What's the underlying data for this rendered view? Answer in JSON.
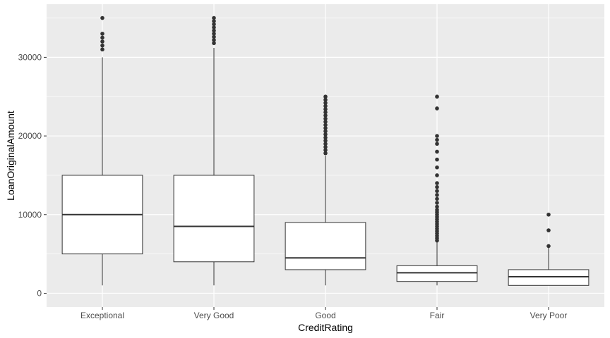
{
  "chart_data": {
    "type": "box",
    "xlabel": "CreditRating",
    "ylabel": "LoanOriginalAmount",
    "ylim": [
      -1750,
      36750
    ],
    "yticks": [
      0,
      10000,
      20000,
      30000
    ],
    "ytick_labels": [
      "0",
      "10000",
      "20000",
      "30000"
    ],
    "grid": true,
    "categories": [
      "Exceptional",
      "Very Good",
      "Good",
      "Fair",
      "Very Poor"
    ],
    "boxes": [
      {
        "category": "Exceptional",
        "whisker_low": 1000,
        "q1": 5000,
        "median": 10000,
        "q3": 15000,
        "whisker_high": 30000,
        "outliers": [
          31000,
          31500,
          32000,
          32500,
          33000,
          35000
        ]
      },
      {
        "category": "Very Good",
        "whisker_low": 1000,
        "q1": 4000,
        "median": 8500,
        "q3": 15000,
        "whisker_high": 31200,
        "outliers": [
          31800,
          32200,
          32600,
          33000,
          33400,
          33800,
          34200,
          34600,
          35000
        ]
      },
      {
        "category": "Good",
        "whisker_low": 1000,
        "q1": 3000,
        "median": 4500,
        "q3": 9000,
        "whisker_high": 17500,
        "outliers": [
          17800,
          18200,
          18600,
          19000,
          19400,
          19800,
          20200,
          20600,
          21000,
          21400,
          21800,
          22200,
          22600,
          23000,
          23400,
          23800,
          24200,
          24600,
          25000
        ]
      },
      {
        "category": "Fair",
        "whisker_low": 1000,
        "q1": 1500,
        "median": 2600,
        "q3": 3500,
        "whisker_high": 6500,
        "outliers": [
          6700,
          7000,
          7300,
          7600,
          7900,
          8200,
          8500,
          8800,
          9100,
          9400,
          9700,
          10000,
          10300,
          10600,
          11000,
          11500,
          12000,
          12500,
          13000,
          13500,
          14000,
          15000,
          16000,
          17000,
          18000,
          19000,
          19500,
          20000,
          23500,
          25000
        ]
      },
      {
        "category": "Very Poor",
        "whisker_low": 1000,
        "q1": 1000,
        "median": 2100,
        "q3": 3000,
        "whisker_high": 6000,
        "outliers": [
          6000,
          8000,
          10000
        ]
      }
    ],
    "colors": {
      "panel": "#ebebeb",
      "grid": "#ffffff",
      "box_fill": "#ffffff",
      "stroke": "#333333"
    }
  }
}
